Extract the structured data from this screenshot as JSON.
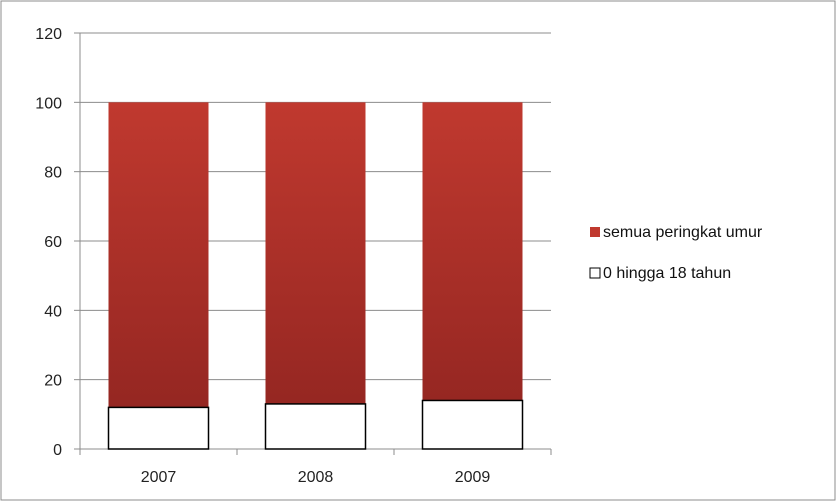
{
  "chart_data": {
    "type": "bar",
    "stacked": false,
    "overlapped": true,
    "categories": [
      "2007",
      "2008",
      "2009"
    ],
    "series": [
      {
        "name": "semua peringkat umur",
        "values": [
          100,
          100,
          100
        ],
        "color": "#c0392f",
        "color_dark": "#8f2420"
      },
      {
        "name": "0 hingga 18 tahun",
        "values": [
          12,
          13,
          14
        ],
        "color": "#ffffff",
        "stroke": "#000000"
      }
    ],
    "ylim": [
      0,
      120
    ],
    "yticks": [
      0,
      20,
      40,
      60,
      80,
      100,
      120
    ],
    "grid": true,
    "legend_position": "right",
    "title": "",
    "xlabel": "",
    "ylabel": ""
  }
}
